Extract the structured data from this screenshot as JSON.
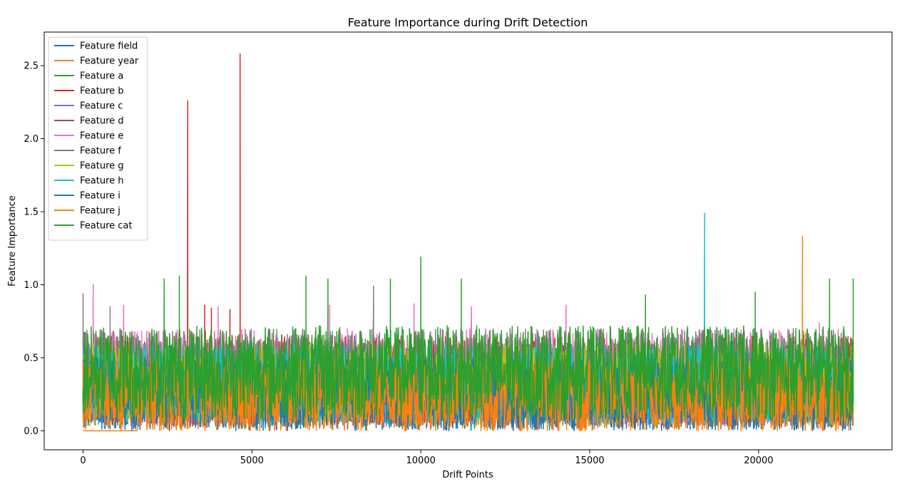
{
  "chart_data": {
    "type": "line",
    "title": "Feature Importance during Drift Detection",
    "xlabel": "Drift Points",
    "ylabel": "Feature Importance",
    "xlim": [
      -1150,
      23950
    ],
    "ylim": [
      -0.13,
      2.73
    ],
    "x_ticks": [
      0,
      5000,
      10000,
      15000,
      20000
    ],
    "x_tick_labels": [
      "0",
      "5000",
      "10000",
      "15000",
      "20000"
    ],
    "y_ticks": [
      0.0,
      0.5,
      1.0,
      1.5,
      2.0,
      2.5
    ],
    "y_tick_labels": [
      "0.0",
      "0.5",
      "1.0",
      "1.5",
      "2.0",
      "2.5"
    ],
    "x_range": [
      0,
      22800
    ],
    "grid": false,
    "legend_position": "upper-left",
    "series": [
      {
        "name": "Feature field",
        "color": "#1f77b4",
        "band": [
          0.01,
          0.45
        ],
        "spikes": [
          [
            1000,
            0.06
          ],
          [
            9000,
            0.05
          ],
          [
            22600,
            0.07
          ]
        ]
      },
      {
        "name": "Feature year",
        "color": "#ff7f0e",
        "band": [
          0.0,
          0.5
        ],
        "flat_segment": {
          "x": [
            0,
            1600
          ],
          "y": 0.0
        },
        "spikes": [
          [
            6700,
            0.55
          ],
          [
            21300,
            1.33
          ],
          [
            21400,
            0.67
          ]
        ]
      },
      {
        "name": "Feature a",
        "color": "#2ca02c",
        "band": [
          0.05,
          0.6
        ],
        "spikes": []
      },
      {
        "name": "Feature b",
        "color": "#d62728",
        "band": [
          0.05,
          0.65
        ],
        "spikes": [
          [
            3100,
            2.26
          ],
          [
            4650,
            2.58
          ],
          [
            3600,
            0.86
          ],
          [
            3800,
            0.84
          ],
          [
            4350,
            0.83
          ]
        ]
      },
      {
        "name": "Feature c",
        "color": "#9467bd",
        "band": [
          0.03,
          0.6
        ],
        "spikes": []
      },
      {
        "name": "Feature d",
        "color": "#8c564b",
        "band": [
          0.03,
          0.6
        ],
        "spikes": []
      },
      {
        "name": "Feature e",
        "color": "#e377c2",
        "band": [
          0.05,
          0.7
        ],
        "spikes": [
          [
            300,
            1.0
          ],
          [
            1200,
            0.86
          ],
          [
            4000,
            0.85
          ],
          [
            7300,
            0.86
          ],
          [
            9800,
            0.87
          ],
          [
            11500,
            0.85
          ],
          [
            14300,
            0.86
          ],
          [
            21800,
            0.74
          ]
        ]
      },
      {
        "name": "Feature f",
        "color": "#7f7f7f",
        "band": [
          0.05,
          0.7
        ],
        "spikes": [
          [
            0,
            0.94
          ],
          [
            800,
            0.85
          ],
          [
            8600,
            0.99
          ]
        ]
      },
      {
        "name": "Feature g",
        "color": "#bcbd22",
        "band": [
          0.03,
          0.6
        ],
        "spikes": []
      },
      {
        "name": "Feature h",
        "color": "#17becf",
        "band": [
          0.03,
          0.6
        ],
        "spikes": [
          [
            18400,
            1.49
          ]
        ]
      },
      {
        "name": "Feature i",
        "color": "#1f77b4",
        "band": [
          0.0,
          0.5
        ],
        "spikes": []
      },
      {
        "name": "Feature j",
        "color": "#ff7f0e",
        "band": [
          0.0,
          0.5
        ],
        "spikes": []
      },
      {
        "name": "Feature cat",
        "color": "#2ca02c",
        "band": [
          0.08,
          0.72
        ],
        "spikes": [
          [
            2400,
            1.04
          ],
          [
            2850,
            1.06
          ],
          [
            6600,
            1.06
          ],
          [
            7250,
            1.04
          ],
          [
            9100,
            1.04
          ],
          [
            10000,
            1.19
          ],
          [
            11200,
            1.04
          ],
          [
            16650,
            0.93
          ],
          [
            19900,
            0.95
          ],
          [
            22100,
            1.04
          ],
          [
            22800,
            1.04
          ]
        ]
      }
    ]
  }
}
